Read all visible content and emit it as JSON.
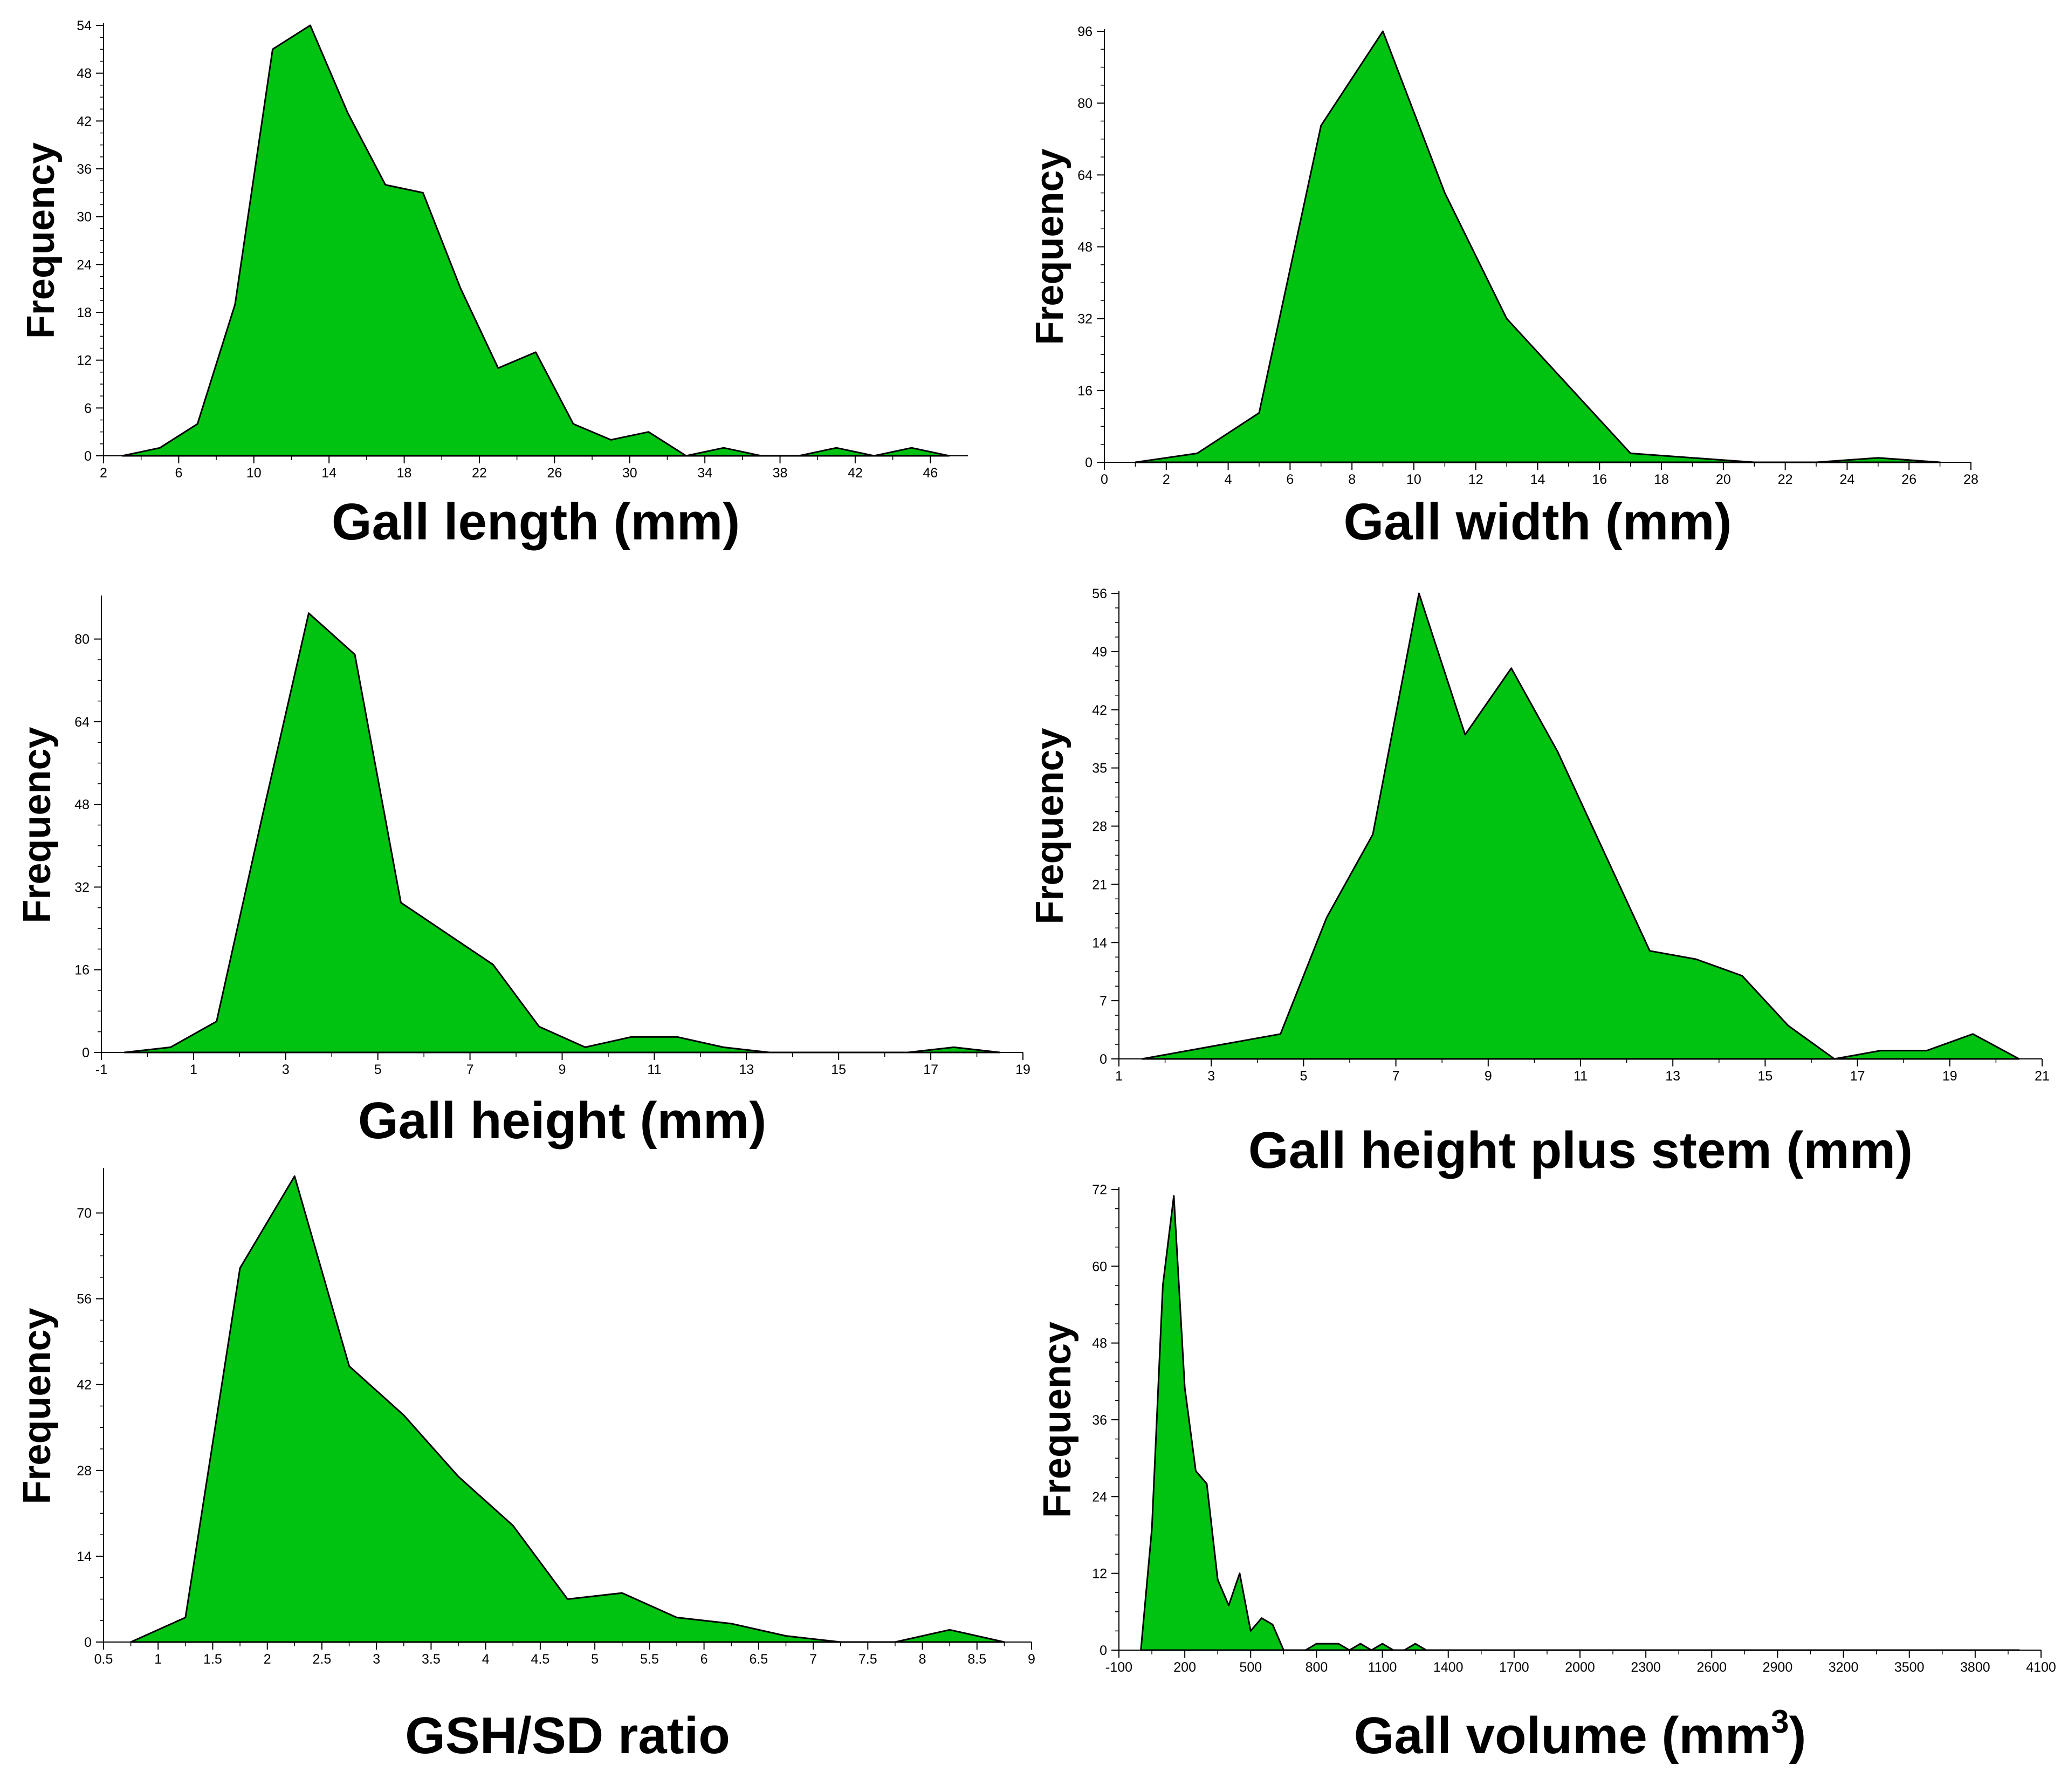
{
  "chart_data": [
    {
      "id": "length",
      "type": "area",
      "title": "Gall length (mm)",
      "xlabel": "Gall length (mm)",
      "ylabel": "Frequency",
      "xlim": [
        2,
        48
      ],
      "ylim": [
        0,
        54
      ],
      "xticks": [
        2,
        6,
        10,
        14,
        18,
        22,
        26,
        30,
        34,
        38,
        42,
        46
      ],
      "xtick_labels": [
        "2",
        "6",
        "10",
        "14",
        "18",
        "22",
        "26",
        "30",
        "34",
        "38",
        "42",
        "46"
      ],
      "yticks": [
        0,
        6,
        12,
        18,
        24,
        30,
        36,
        42,
        48,
        54
      ],
      "ytick_labels": [
        "0",
        "6",
        "12",
        "18",
        "24",
        "30",
        "36",
        "42",
        "48",
        "54"
      ],
      "x": [
        3,
        5,
        7,
        9,
        11,
        13,
        15,
        17,
        19,
        21,
        23,
        25,
        27,
        29,
        31,
        33,
        35,
        37,
        39,
        41,
        43,
        45,
        47
      ],
      "y": [
        0,
        1,
        4,
        19,
        51,
        54,
        43,
        34,
        33,
        21,
        11,
        13,
        4,
        2,
        3,
        0,
        1,
        0,
        0,
        1,
        0,
        1,
        0
      ],
      "fill": "#00c211"
    },
    {
      "id": "width",
      "type": "area",
      "title": "Gall width (mm)",
      "xlabel": "Gall width (mm)",
      "ylabel": "Frequency",
      "xlim": [
        0,
        28
      ],
      "ylim": [
        0,
        96
      ],
      "xticks": [
        0,
        2,
        4,
        6,
        8,
        10,
        12,
        14,
        16,
        18,
        20,
        22,
        24,
        26,
        28
      ],
      "xtick_labels": [
        "0",
        "2",
        "4",
        "6",
        "8",
        "10",
        "12",
        "14",
        "16",
        "18",
        "20",
        "22",
        "24",
        "26",
        "28"
      ],
      "yticks": [
        0,
        16,
        32,
        48,
        64,
        80,
        96
      ],
      "ytick_labels": [
        "0",
        "16",
        "32",
        "48",
        "64",
        "80",
        "96"
      ],
      "x": [
        1,
        3,
        5,
        7,
        9,
        11,
        13,
        15,
        17,
        19,
        21,
        23,
        25,
        27
      ],
      "y": [
        0,
        2,
        11,
        75,
        96,
        60,
        32,
        17,
        2,
        1,
        0,
        0,
        1,
        0
      ],
      "fill": "#00c211"
    },
    {
      "id": "height",
      "type": "area",
      "title": "Gall height (mm)",
      "xlabel": "Gall height (mm)",
      "ylabel": "Frequency",
      "xlim": [
        -1,
        19
      ],
      "ylim": [
        0,
        88
      ],
      "xticks": [
        -1,
        1,
        3,
        5,
        7,
        9,
        11,
        13,
        15,
        17,
        19
      ],
      "xtick_labels": [
        "-1",
        "1",
        "3",
        "5",
        "7",
        "9",
        "11",
        "13",
        "15",
        "17",
        "19"
      ],
      "yticks": [
        0,
        16,
        32,
        48,
        64,
        80
      ],
      "ytick_labels": [
        "0",
        "16",
        "32",
        "48",
        "64",
        "80"
      ],
      "x": [
        -0.5,
        0.5,
        1.5,
        2.5,
        3.5,
        4.5,
        5.5,
        6.5,
        7.5,
        8.5,
        9.5,
        10.5,
        11.5,
        12.5,
        13.5,
        14.5,
        15.5,
        16.5,
        17.5,
        18.5
      ],
      "y": [
        0,
        1,
        6,
        46,
        85,
        77,
        29,
        23,
        17,
        5,
        1,
        3,
        3,
        1,
        0,
        0,
        0,
        0,
        1,
        0
      ],
      "fill": "#00c211"
    },
    {
      "id": "height_stem",
      "type": "area",
      "title": "Gall height plus stem (mm)",
      "xlabel": "Gall height plus stem (mm)",
      "ylabel": "Frequency",
      "xlim": [
        1,
        21
      ],
      "ylim": [
        0,
        56
      ],
      "xticks": [
        1,
        3,
        5,
        7,
        9,
        11,
        13,
        15,
        17,
        19,
        21
      ],
      "xtick_labels": [
        "1",
        "3",
        "5",
        "7",
        "9",
        "11",
        "13",
        "15",
        "17",
        "19",
        "21"
      ],
      "yticks": [
        0,
        7,
        14,
        21,
        28,
        35,
        42,
        49,
        56
      ],
      "ytick_labels": [
        "0",
        "7",
        "14",
        "21",
        "28",
        "35",
        "42",
        "49",
        "56"
      ],
      "x": [
        1.5,
        2.5,
        3.5,
        4.5,
        5.5,
        6.5,
        7.5,
        8.5,
        9.5,
        10.5,
        11.5,
        12.5,
        13.5,
        14.5,
        15.5,
        16.5,
        17.5,
        18.5,
        19.5,
        20.5
      ],
      "y": [
        0,
        1,
        2,
        3,
        17,
        27,
        56,
        39,
        47,
        37,
        25,
        13,
        12,
        10,
        4,
        0,
        1,
        1,
        3,
        0
      ],
      "fill": "#00c211"
    },
    {
      "id": "ratio",
      "type": "area",
      "title": "GSH/SD ratio",
      "xlabel": "GSH/SD ratio",
      "ylabel": "Frequency",
      "xlim": [
        0.5,
        9
      ],
      "ylim": [
        0,
        77
      ],
      "xticks": [
        0.5,
        1,
        1.5,
        2,
        2.5,
        3,
        3.5,
        4,
        4.5,
        5,
        5.5,
        6,
        6.5,
        7,
        7.5,
        8,
        8.5,
        9
      ],
      "xtick_labels": [
        "0.5",
        "1",
        "1.5",
        "2",
        "2.5",
        "3",
        "3.5",
        "4",
        "4.5",
        "5",
        "5.5",
        "6",
        "6.5",
        "7",
        "7.5",
        "8",
        "8.5",
        "9"
      ],
      "yticks": [
        0,
        14,
        28,
        42,
        56,
        70
      ],
      "ytick_labels": [
        "0",
        "14",
        "28",
        "42",
        "56",
        "70"
      ],
      "x": [
        0.75,
        1.25,
        1.75,
        2.25,
        2.75,
        3.25,
        3.75,
        4.25,
        4.75,
        5.25,
        5.75,
        6.25,
        6.75,
        7.25,
        7.75,
        8.25,
        8.75
      ],
      "y": [
        0,
        4,
        61,
        76,
        45,
        37,
        27,
        19,
        7,
        8,
        4,
        3,
        1,
        0,
        0,
        2,
        0
      ],
      "fill": "#00c211"
    },
    {
      "id": "volume",
      "type": "area",
      "title": "Gall volume (mm3)",
      "title_main": "Gall volume (mm",
      "title_sup": "3",
      "title_end": ")",
      "xlabel": "Gall volume (mm3)",
      "ylabel": "Frequency",
      "xlim": [
        -100,
        4100
      ],
      "ylim": [
        0,
        72
      ],
      "xticks": [
        -100,
        200,
        500,
        800,
        1100,
        1400,
        1700,
        2000,
        2300,
        2600,
        2900,
        3200,
        3500,
        3800,
        4100
      ],
      "xtick_labels": [
        "-100",
        "200",
        "500",
        "800",
        "1100",
        "1400",
        "1700",
        "2000",
        "2300",
        "2600",
        "2900",
        "3200",
        "3500",
        "3800",
        "4100"
      ],
      "yticks": [
        0,
        12,
        24,
        36,
        48,
        60,
        72
      ],
      "ytick_labels": [
        "0",
        "12",
        "24",
        "36",
        "48",
        "60",
        "72"
      ],
      "x": [
        0,
        50,
        100,
        150,
        200,
        250,
        300,
        350,
        400,
        450,
        500,
        550,
        600,
        650,
        700,
        750,
        800,
        850,
        900,
        950,
        1000,
        1050,
        1100,
        1150,
        1200,
        1250,
        1300,
        1350,
        1400,
        1450,
        1500,
        1550,
        1600,
        1650,
        1700,
        1750,
        1800,
        1850,
        1900,
        1950,
        2000,
        2050,
        2100,
        2150,
        2200,
        2250,
        2300,
        2350,
        2400,
        2450,
        2500,
        2550,
        2600,
        2650,
        2700,
        2750,
        2800,
        2850,
        2900,
        2950,
        3000,
        3050,
        3100,
        3150,
        3200,
        3250,
        3300,
        3350,
        3400,
        3450,
        3500,
        3550,
        3600,
        3650,
        3700,
        3750,
        3800,
        3850,
        3900,
        3950,
        4000
      ],
      "y": [
        0,
        19,
        57,
        71,
        41,
        28,
        26,
        11,
        7,
        12,
        3,
        5,
        4,
        0,
        0,
        0,
        1,
        1,
        1,
        0,
        1,
        0,
        1,
        0,
        0,
        1,
        0,
        0,
        0,
        0,
        0,
        0,
        0,
        0,
        0,
        0,
        0,
        0,
        0,
        0,
        0,
        0,
        0,
        0,
        0,
        0,
        0,
        0,
        0,
        0,
        0,
        0,
        0,
        0,
        0,
        0,
        0,
        0,
        0,
        0,
        0,
        0,
        0,
        0,
        0,
        0,
        0,
        0,
        0,
        0,
        0,
        0,
        0,
        0,
        0,
        0,
        0,
        0,
        0,
        0,
        0
      ],
      "fill": "#00c211"
    }
  ]
}
